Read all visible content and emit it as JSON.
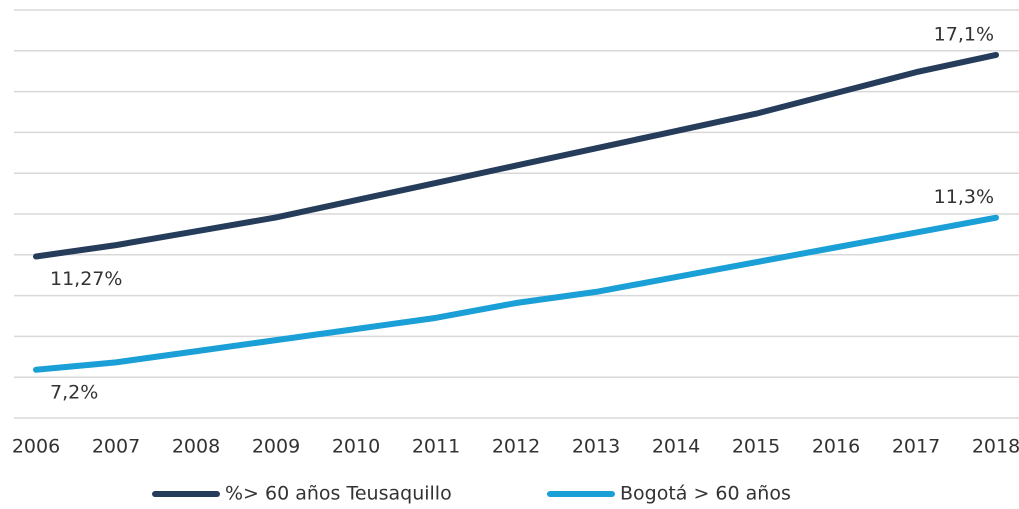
{
  "chart_data": {
    "type": "line",
    "categories": [
      "2006",
      "2007",
      "2008",
      "2009",
      "2010",
      "2011",
      "2012",
      "2013",
      "2014",
      "2015",
      "2016",
      "2017",
      "2018"
    ],
    "series": [
      {
        "name": "%> 60 años Teusaquillo",
        "color": "#253d5b",
        "values": [
          11.27,
          11.6,
          12.0,
          12.4,
          12.9,
          13.4,
          13.9,
          14.4,
          14.9,
          15.4,
          16.0,
          16.6,
          17.1
        ],
        "value_labels": [
          "11,27%",
          null,
          null,
          null,
          null,
          null,
          null,
          null,
          null,
          null,
          null,
          null,
          "17,1%"
        ]
      },
      {
        "name": "Bogotá > 60 años",
        "color": "#1a9fd6",
        "axis": "y2",
        "values": [
          7.2,
          7.4,
          7.7,
          8.0,
          8.3,
          8.6,
          9.0,
          9.3,
          9.7,
          10.1,
          10.5,
          10.9,
          11.3
        ],
        "value_labels": [
          "7,2%",
          null,
          null,
          null,
          null,
          null,
          null,
          null,
          null,
          null,
          null,
          null,
          "11,3%"
        ]
      }
    ],
    "ylim": [
      6.6,
      18.4
    ],
    "yticks": [
      6.6,
      7.78,
      8.96,
      10.14,
      11.32,
      12.5,
      13.68,
      14.86,
      16.04,
      17.22,
      18.4
    ],
    "y2lim": [
      5.9,
      16.9
    ],
    "grid": true,
    "legend": "bottom"
  }
}
